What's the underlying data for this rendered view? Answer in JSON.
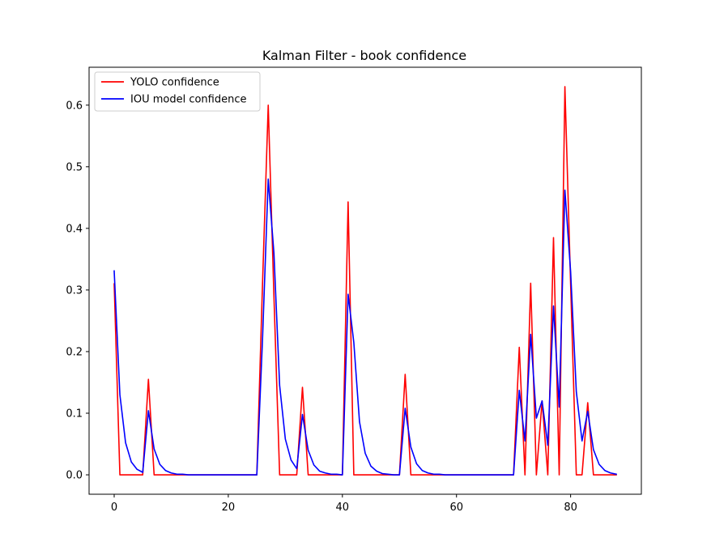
{
  "chart_data": {
    "type": "line",
    "title": "Kalman Filter - book confidence",
    "xlabel": "",
    "ylabel": "",
    "xlim": [
      -4.4,
      92.4
    ],
    "ylim": [
      -0.0315,
      0.6615
    ],
    "xticks": [
      0,
      20,
      40,
      60,
      80
    ],
    "yticks": [
      0.0,
      0.1,
      0.2,
      0.3,
      0.4,
      0.5,
      0.6
    ],
    "ytick_labels": [
      "0.0",
      "0.1",
      "0.2",
      "0.3",
      "0.4",
      "0.5",
      "0.6"
    ],
    "grid": false,
    "legend": "top-left",
    "series": [
      {
        "name": "YOLO confidence",
        "color": "#ff0000",
        "x": [
          0,
          1,
          2,
          3,
          4,
          5,
          6,
          7,
          8,
          9,
          10,
          11,
          12,
          13,
          14,
          15,
          16,
          17,
          18,
          19,
          20,
          21,
          22,
          23,
          24,
          25,
          26,
          27,
          28,
          29,
          30,
          31,
          32,
          33,
          34,
          35,
          36,
          37,
          38,
          39,
          40,
          41,
          42,
          43,
          44,
          45,
          46,
          47,
          48,
          49,
          50,
          51,
          52,
          53,
          54,
          55,
          56,
          57,
          58,
          59,
          60,
          61,
          62,
          63,
          64,
          65,
          66,
          67,
          68,
          69,
          70,
          71,
          72,
          73,
          74,
          75,
          76,
          77,
          78,
          79,
          80,
          81,
          82,
          83,
          84,
          85,
          86,
          87,
          88
        ],
        "y": [
          0.31,
          0,
          0,
          0,
          0,
          0,
          0.155,
          0,
          0,
          0,
          0,
          0,
          0,
          0,
          0,
          0,
          0,
          0,
          0,
          0,
          0,
          0,
          0,
          0,
          0,
          0,
          0.31,
          0.6,
          0.29,
          0,
          0,
          0,
          0,
          0.142,
          0,
          0,
          0,
          0,
          0,
          0,
          0,
          0.443,
          0,
          0,
          0,
          0,
          0,
          0,
          0,
          0,
          0,
          0.163,
          0,
          0,
          0,
          0,
          0,
          0,
          0,
          0,
          0,
          0,
          0,
          0,
          0,
          0,
          0,
          0,
          0,
          0,
          0,
          0.207,
          0,
          0.311,
          0,
          0.12,
          0,
          0.385,
          0,
          0.63,
          0.31,
          0,
          0,
          0.117,
          0,
          0,
          0,
          0,
          0
        ]
      },
      {
        "name": "IOU model confidence",
        "color": "#0000ff",
        "x": [
          0,
          1,
          2,
          3,
          4,
          5,
          6,
          7,
          8,
          9,
          10,
          11,
          12,
          13,
          14,
          15,
          16,
          17,
          18,
          19,
          20,
          21,
          22,
          23,
          24,
          25,
          26,
          27,
          28,
          29,
          30,
          31,
          32,
          33,
          34,
          35,
          36,
          37,
          38,
          39,
          40,
          41,
          42,
          43,
          44,
          45,
          46,
          47,
          48,
          49,
          50,
          51,
          52,
          53,
          54,
          55,
          56,
          57,
          58,
          59,
          60,
          61,
          62,
          63,
          64,
          65,
          66,
          67,
          68,
          69,
          70,
          71,
          72,
          73,
          74,
          75,
          76,
          77,
          78,
          79,
          80,
          81,
          82,
          83,
          84,
          85,
          86,
          87,
          88
        ],
        "y": [
          0.331,
          0.13,
          0.052,
          0.021,
          0.009,
          0.004,
          0.104,
          0.042,
          0.017,
          0.007,
          0.003,
          0.001,
          0.001,
          0,
          0,
          0,
          0,
          0,
          0,
          0,
          0,
          0,
          0,
          0,
          0,
          0,
          0.22,
          0.48,
          0.36,
          0.145,
          0.058,
          0.024,
          0.01,
          0.098,
          0.04,
          0.016,
          0.006,
          0.003,
          0.001,
          0.001,
          0,
          0.293,
          0.215,
          0.086,
          0.035,
          0.014,
          0.006,
          0.002,
          0.001,
          0,
          0,
          0.108,
          0.045,
          0.018,
          0.007,
          0.003,
          0.001,
          0.001,
          0,
          0,
          0,
          0,
          0,
          0,
          0,
          0,
          0,
          0,
          0,
          0,
          0,
          0.137,
          0.055,
          0.228,
          0.092,
          0.12,
          0.048,
          0.274,
          0.11,
          0.462,
          0.33,
          0.135,
          0.055,
          0.103,
          0.041,
          0.017,
          0.007,
          0.003,
          0.001
        ]
      }
    ]
  }
}
